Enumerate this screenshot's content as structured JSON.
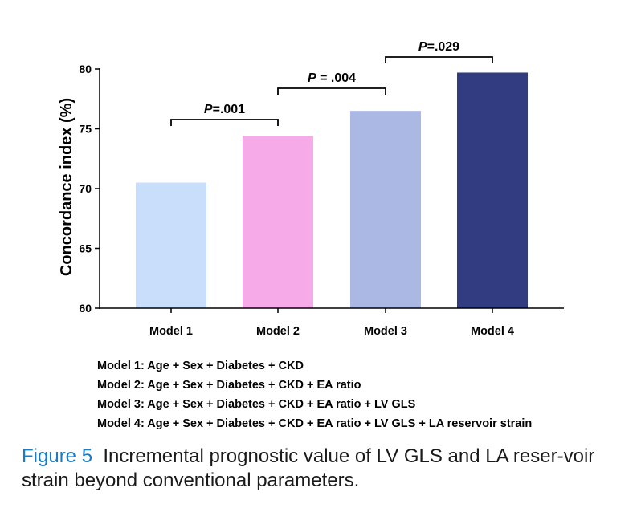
{
  "chart_data": {
    "type": "bar",
    "categories": [
      "Model 1",
      "Model 2",
      "Model 3",
      "Model 4"
    ],
    "values": [
      70.5,
      74.4,
      76.5,
      79.7
    ],
    "colors": [
      "#c9defa",
      "#f6aae8",
      "#abb8e3",
      "#323d81"
    ],
    "ylabel": "Concordance index (%)",
    "xlabel": "",
    "ylim": [
      60,
      80
    ],
    "yticks": [
      60,
      65,
      70,
      75,
      80
    ],
    "comparisons": [
      {
        "from": 0,
        "to": 1,
        "label_italic": "P",
        "label_rest": "=.001"
      },
      {
        "from": 1,
        "to": 2,
        "label_italic": "P",
        "label_rest": " = .004"
      },
      {
        "from": 2,
        "to": 3,
        "label_italic": "P",
        "label_rest": "=.029"
      }
    ]
  },
  "legend": [
    "Model 1: Age + Sex + Diabetes + CKD",
    "Model 2: Age + Sex + Diabetes + CKD + EA ratio",
    "Model 3: Age + Sex + Diabetes + CKD + EA ratio + LV GLS",
    "Model 4: Age + Sex + Diabetes + CKD + EA ratio + LV GLS + LA reservoir strain"
  ],
  "caption": {
    "label": "Figure 5",
    "text": "Incremental prognostic value of LV GLS and LA reser-voir strain beyond conventional parameters."
  }
}
